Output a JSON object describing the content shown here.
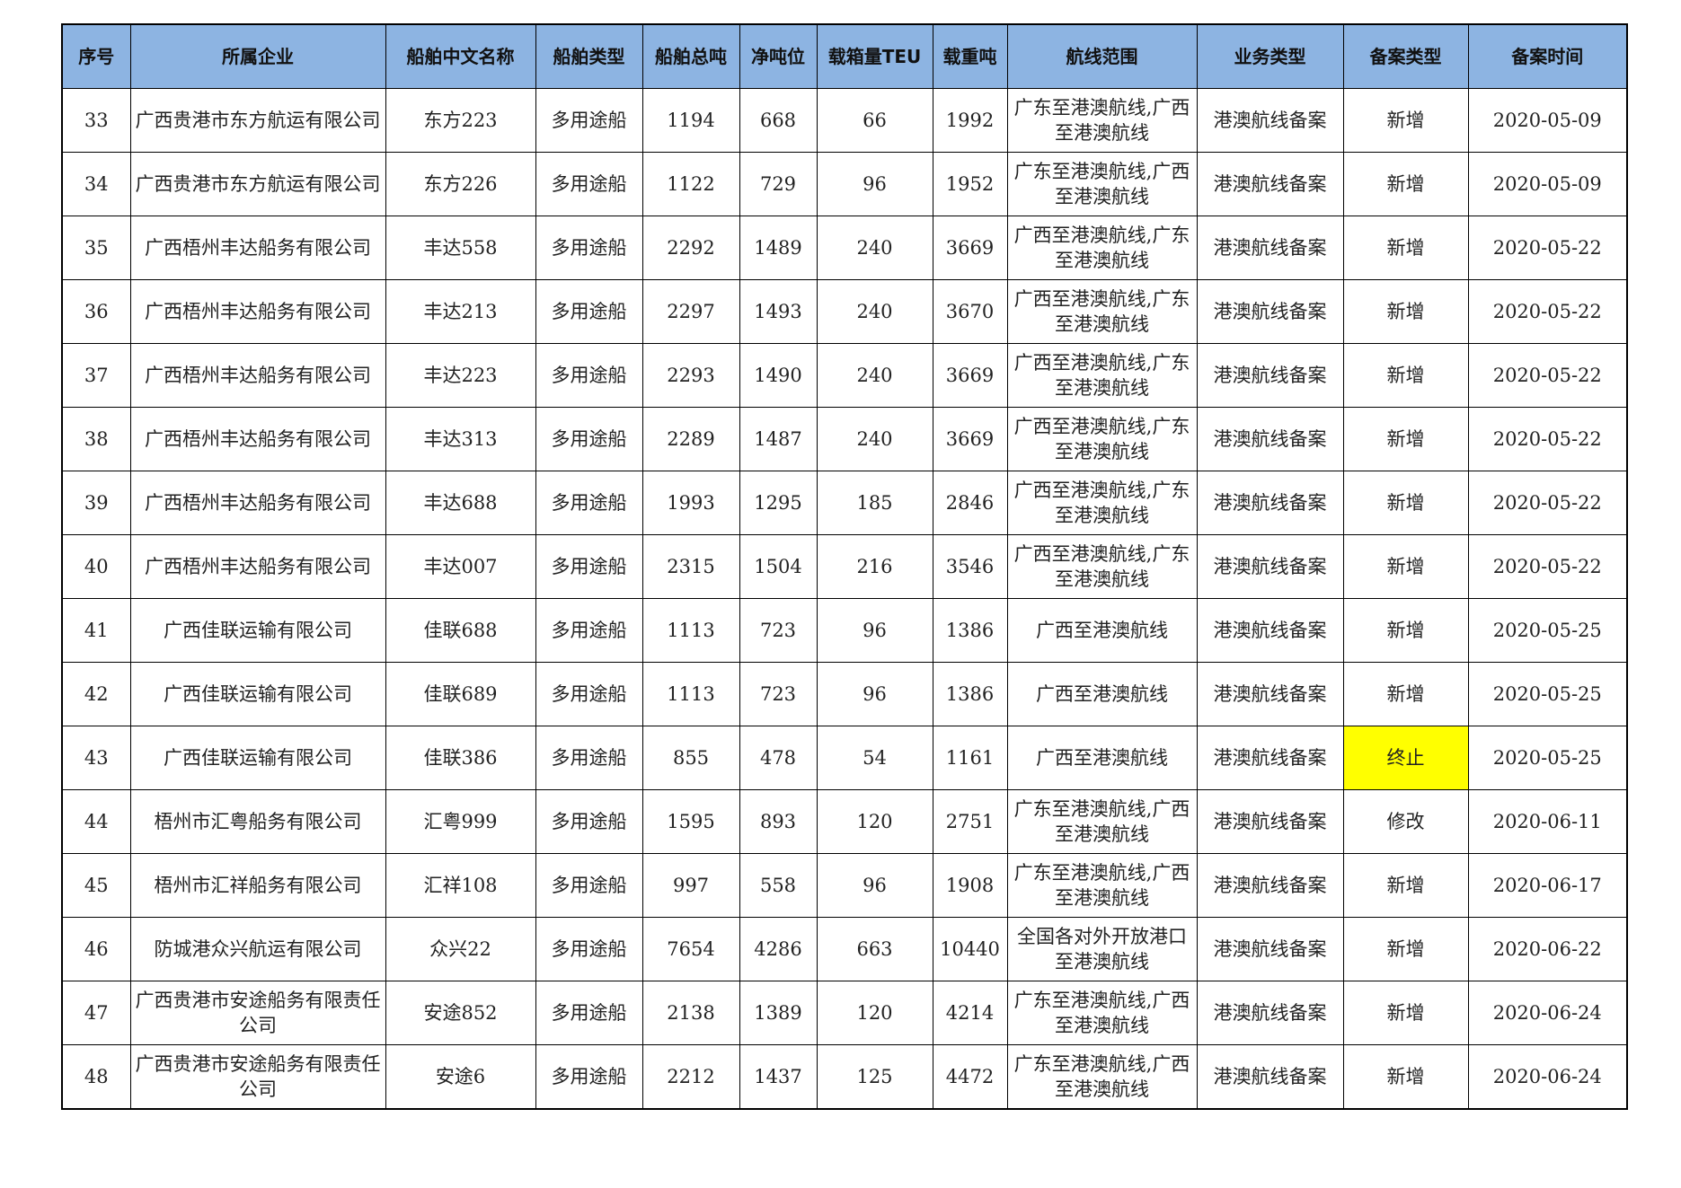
{
  "headers": [
    "序号",
    "所属企业",
    "船舶中文名称",
    "船舶类型",
    "船舶总吨",
    "净吨位",
    "载箱量TEU",
    "载重吨",
    "航线范围",
    "业务类型",
    "备案类型",
    "备案时间"
  ],
  "highlight_color": "#ffff00",
  "header_color": "#8db4e2",
  "rows": [
    {
      "no": "33",
      "company": "广西贵港市东方航运有限公司",
      "ship": "东方223",
      "type": "多用途船",
      "gt": "1194",
      "nt": "668",
      "teu": "66",
      "dwt": "1992",
      "route": "广东至港澳航线,广西至港澳航线",
      "biz": "港澳航线备案",
      "filing": "新增",
      "date": "2020-05-09"
    },
    {
      "no": "34",
      "company": "广西贵港市东方航运有限公司",
      "ship": "东方226",
      "type": "多用途船",
      "gt": "1122",
      "nt": "729",
      "teu": "96",
      "dwt": "1952",
      "route": "广东至港澳航线,广西至港澳航线",
      "biz": "港澳航线备案",
      "filing": "新增",
      "date": "2020-05-09"
    },
    {
      "no": "35",
      "company": "广西梧州丰达船务有限公司",
      "ship": "丰达558",
      "type": "多用途船",
      "gt": "2292",
      "nt": "1489",
      "teu": "240",
      "dwt": "3669",
      "route": "广西至港澳航线,广东至港澳航线",
      "biz": "港澳航线备案",
      "filing": "新增",
      "date": "2020-05-22"
    },
    {
      "no": "36",
      "company": "广西梧州丰达船务有限公司",
      "ship": "丰达213",
      "type": "多用途船",
      "gt": "2297",
      "nt": "1493",
      "teu": "240",
      "dwt": "3670",
      "route": "广西至港澳航线,广东至港澳航线",
      "biz": "港澳航线备案",
      "filing": "新增",
      "date": "2020-05-22"
    },
    {
      "no": "37",
      "company": "广西梧州丰达船务有限公司",
      "ship": "丰达223",
      "type": "多用途船",
      "gt": "2293",
      "nt": "1490",
      "teu": "240",
      "dwt": "3669",
      "route": "广西至港澳航线,广东至港澳航线",
      "biz": "港澳航线备案",
      "filing": "新增",
      "date": "2020-05-22"
    },
    {
      "no": "38",
      "company": "广西梧州丰达船务有限公司",
      "ship": "丰达313",
      "type": "多用途船",
      "gt": "2289",
      "nt": "1487",
      "teu": "240",
      "dwt": "3669",
      "route": "广西至港澳航线,广东至港澳航线",
      "biz": "港澳航线备案",
      "filing": "新增",
      "date": "2020-05-22"
    },
    {
      "no": "39",
      "company": "广西梧州丰达船务有限公司",
      "ship": "丰达688",
      "type": "多用途船",
      "gt": "1993",
      "nt": "1295",
      "teu": "185",
      "dwt": "2846",
      "route": "广西至港澳航线,广东至港澳航线",
      "biz": "港澳航线备案",
      "filing": "新增",
      "date": "2020-05-22"
    },
    {
      "no": "40",
      "company": "广西梧州丰达船务有限公司",
      "ship": "丰达007",
      "type": "多用途船",
      "gt": "2315",
      "nt": "1504",
      "teu": "216",
      "dwt": "3546",
      "route": "广西至港澳航线,广东至港澳航线",
      "biz": "港澳航线备案",
      "filing": "新增",
      "date": "2020-05-22"
    },
    {
      "no": "41",
      "company": "广西佳联运输有限公司",
      "ship": "佳联688",
      "type": "多用途船",
      "gt": "1113",
      "nt": "723",
      "teu": "96",
      "dwt": "1386",
      "route": "广西至港澳航线",
      "biz": "港澳航线备案",
      "filing": "新增",
      "date": "2020-05-25"
    },
    {
      "no": "42",
      "company": "广西佳联运输有限公司",
      "ship": "佳联689",
      "type": "多用途船",
      "gt": "1113",
      "nt": "723",
      "teu": "96",
      "dwt": "1386",
      "route": "广西至港澳航线",
      "biz": "港澳航线备案",
      "filing": "新增",
      "date": "2020-05-25"
    },
    {
      "no": "43",
      "company": "广西佳联运输有限公司",
      "ship": "佳联386",
      "type": "多用途船",
      "gt": "855",
      "nt": "478",
      "teu": "54",
      "dwt": "1161",
      "route": "广西至港澳航线",
      "biz": "港澳航线备案",
      "filing": "终止",
      "date": "2020-05-25",
      "highlight": true
    },
    {
      "no": "44",
      "company": "梧州市汇粤船务有限公司",
      "ship": "汇粤999",
      "type": "多用途船",
      "gt": "1595",
      "nt": "893",
      "teu": "120",
      "dwt": "2751",
      "route": "广东至港澳航线,广西至港澳航线",
      "biz": "港澳航线备案",
      "filing": "修改",
      "date": "2020-06-11"
    },
    {
      "no": "45",
      "company": "梧州市汇祥船务有限公司",
      "ship": "汇祥108",
      "type": "多用途船",
      "gt": "997",
      "nt": "558",
      "teu": "96",
      "dwt": "1908",
      "route": "广东至港澳航线,广西至港澳航线",
      "biz": "港澳航线备案",
      "filing": "新增",
      "date": "2020-06-17"
    },
    {
      "no": "46",
      "company": "防城港众兴航运有限公司",
      "ship": "众兴22",
      "type": "多用途船",
      "gt": "7654",
      "nt": "4286",
      "teu": "663",
      "dwt": "10440",
      "route": "全国各对外开放港口至港澳航线",
      "biz": "港澳航线备案",
      "filing": "新增",
      "date": "2020-06-22"
    },
    {
      "no": "47",
      "company": "广西贵港市安途船务有限责任公司",
      "ship": "安途852",
      "type": "多用途船",
      "gt": "2138",
      "nt": "1389",
      "teu": "120",
      "dwt": "4214",
      "route": "广东至港澳航线,广西至港澳航线",
      "biz": "港澳航线备案",
      "filing": "新增",
      "date": "2020-06-24"
    },
    {
      "no": "48",
      "company": "广西贵港市安途船务有限责任公司",
      "ship": "安途6",
      "type": "多用途船",
      "gt": "2212",
      "nt": "1437",
      "teu": "125",
      "dwt": "4472",
      "route": "广东至港澳航线,广西至港澳航线",
      "biz": "港澳航线备案",
      "filing": "新增",
      "date": "2020-06-24"
    }
  ]
}
